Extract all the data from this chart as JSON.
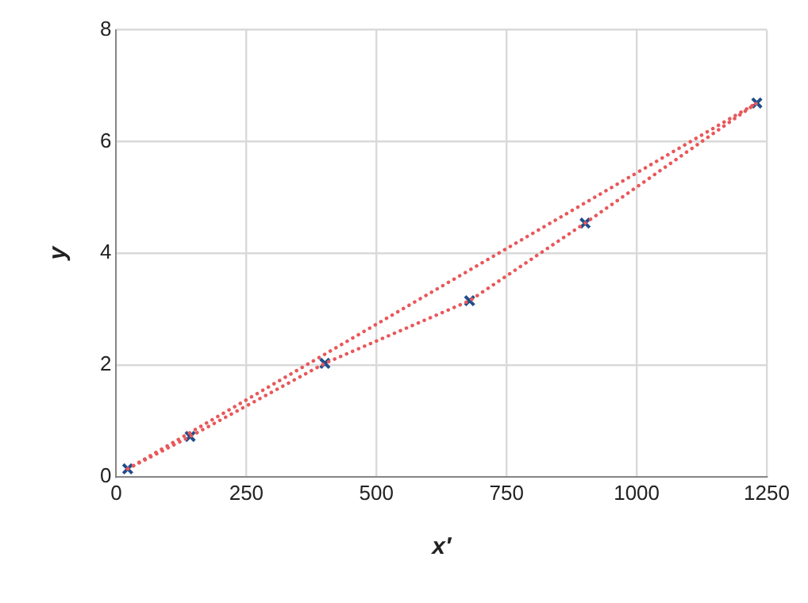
{
  "chart_data": {
    "type": "scatter",
    "xlabel": "x′",
    "ylabel": "y",
    "xlim": [
      0,
      1250
    ],
    "xticks": [
      0,
      250,
      500,
      750,
      1000,
      1250
    ],
    "ylim": [
      0,
      8
    ],
    "yticks": [
      0,
      2,
      4,
      6,
      8
    ],
    "grid": true,
    "legend": false,
    "series": [
      {
        "type": "line",
        "color": "#e8585a",
        "line_style": "dotted",
        "marker": "none",
        "x": [
          22,
          142,
          401,
          679,
          901,
          1231
        ],
        "values": [
          0.14,
          0.72,
          2.03,
          3.15,
          4.54,
          6.69
        ]
      },
      {
        "type": "line",
        "color": "#e8585a",
        "line_style": "dotted",
        "marker": "none",
        "x": [
          22,
          1231
        ],
        "values": [
          0.14,
          6.69
        ]
      },
      {
        "color": "#1f4e8c",
        "marker": "cross",
        "x": [
          22,
          142,
          401,
          679,
          901,
          1231
        ],
        "values": [
          0.14,
          0.72,
          2.03,
          3.15,
          4.54,
          6.69
        ]
      }
    ]
  }
}
